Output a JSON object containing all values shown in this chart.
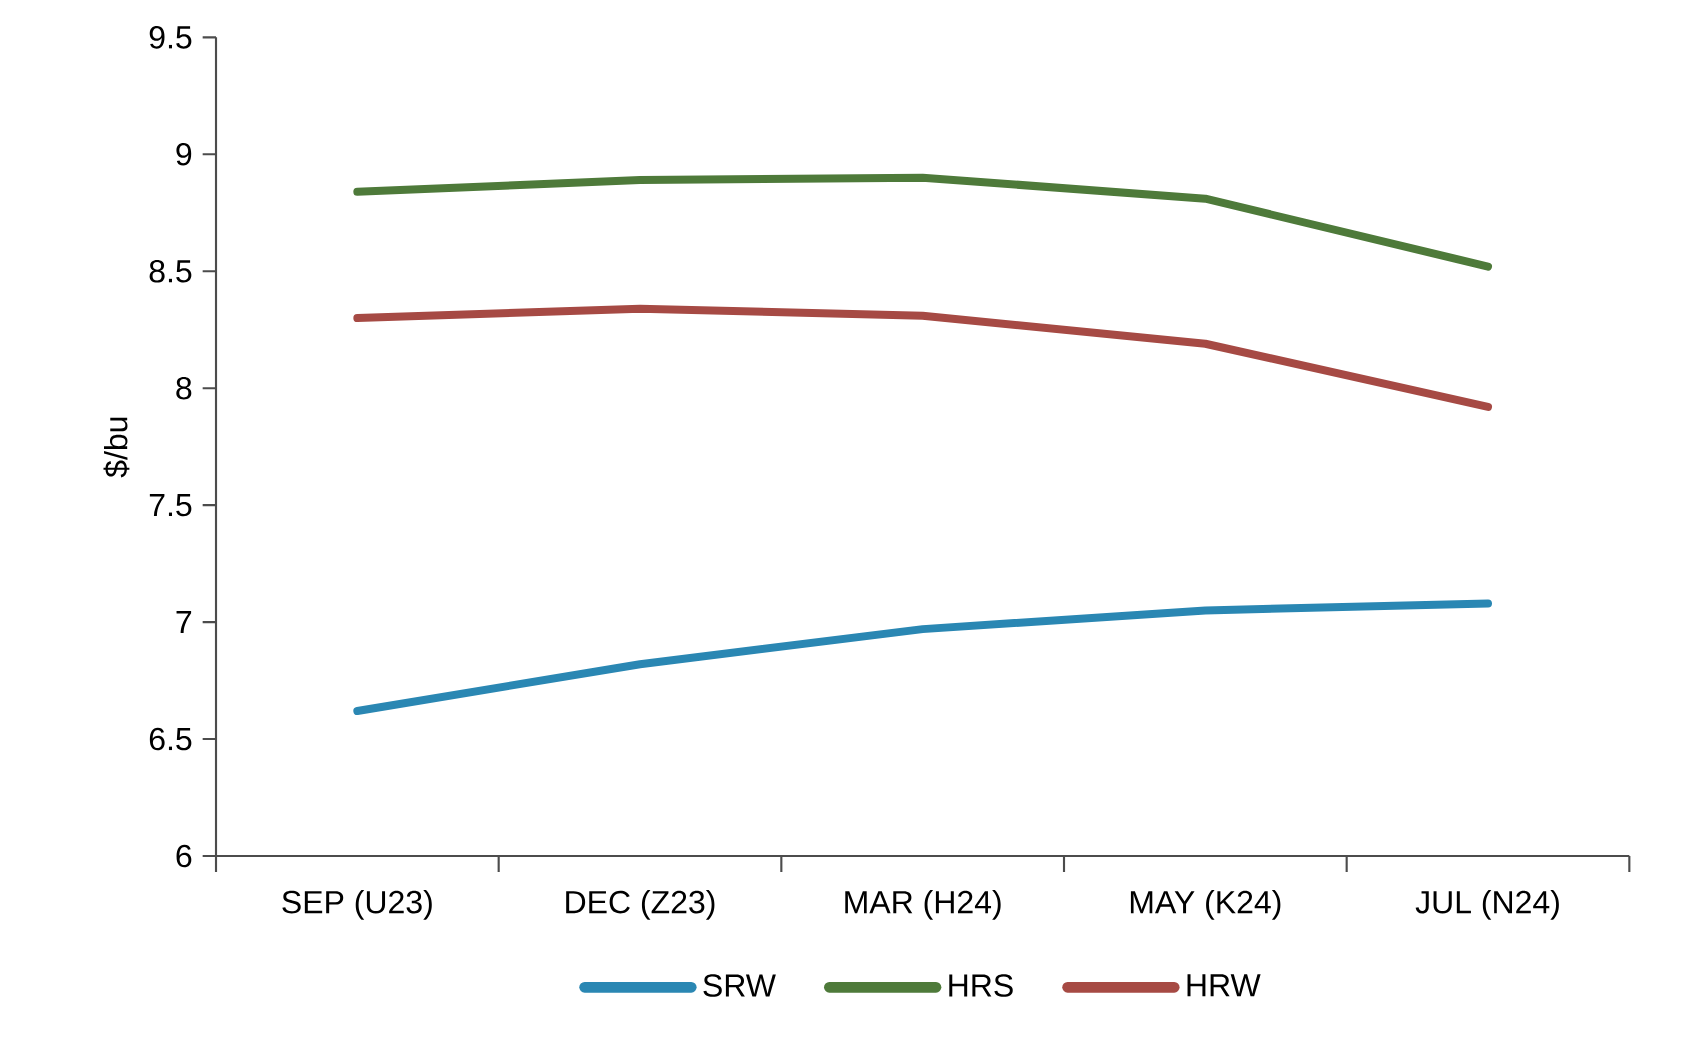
{
  "chart_data": {
    "type": "line",
    "ylabel": "$/bu",
    "categories": [
      "SEP (U23)",
      "DEC (Z23)",
      "MAR (H24)",
      "MAY (K24)",
      "JUL (N24)"
    ],
    "series": [
      {
        "name": "SRW",
        "color": "#2a87b3",
        "values": [
          6.62,
          6.82,
          6.97,
          7.05,
          7.08
        ]
      },
      {
        "name": "HRS",
        "color": "#4e7a3a",
        "values": [
          8.84,
          8.89,
          8.9,
          8.81,
          8.52
        ]
      },
      {
        "name": "HRW",
        "color": "#a64a44",
        "values": [
          8.3,
          8.34,
          8.31,
          8.19,
          7.92
        ]
      }
    ],
    "ylim": [
      6,
      9.5
    ],
    "yticks": [
      6,
      6.5,
      7,
      7.5,
      8,
      8.5,
      9,
      9.5
    ],
    "grid": false,
    "legend": "bottom",
    "marker": "none",
    "line_style": "solid"
  }
}
